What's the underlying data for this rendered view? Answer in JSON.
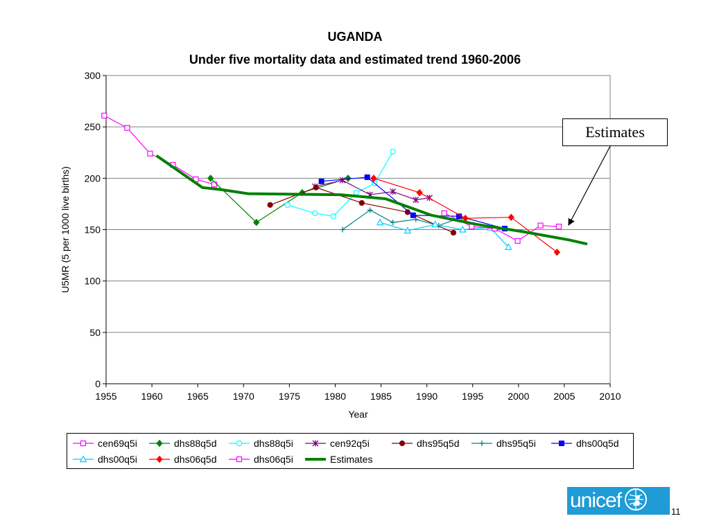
{
  "title": "UGANDA",
  "subtitle": "Under five mortality data and estimated trend 1960-2006",
  "callout": {
    "label": "Estimates"
  },
  "logo": {
    "text": "unicef"
  },
  "page_number": "11",
  "chart_data": {
    "type": "line",
    "title": "UGANDA",
    "subtitle": "Under five mortality data and estimated trend 1960-2006",
    "xlabel": "Year",
    "ylabel": "U5MR (5 per 1000 live births)",
    "xlim": [
      1955,
      2010
    ],
    "ylim": [
      0,
      300
    ],
    "xticks": [
      1955,
      1960,
      1965,
      1970,
      1975,
      1980,
      1985,
      1990,
      1995,
      2000,
      2005,
      2010
    ],
    "yticks": [
      0,
      50,
      100,
      150,
      200,
      250,
      300
    ],
    "grid": "horizontal",
    "legend": "bottom",
    "series": [
      {
        "name": "cen69q5i",
        "color": "#ff00ff",
        "marker": "square-open",
        "x": [
          1954.8,
          1957.3,
          1959.8,
          1962.3,
          1964.8,
          1966.8
        ],
        "y": [
          261,
          249,
          224,
          213,
          199,
          194
        ]
      },
      {
        "name": "dhs88q5d",
        "color": "#008000",
        "marker": "diamond",
        "x": [
          1966.4,
          1971.4,
          1976.4,
          1981.4
        ],
        "y": [
          200,
          157,
          186,
          200
        ]
      },
      {
        "name": "dhs88q5i",
        "color": "#00ffff",
        "marker": "circle-open",
        "x": [
          1974.8,
          1977.8,
          1979.8,
          1982.3,
          1984.3,
          1986.3
        ],
        "y": [
          174,
          166,
          163,
          186,
          195,
          226
        ]
      },
      {
        "name": "cen92q5i",
        "color": "#800080",
        "marker": "star",
        "x": [
          1977.8,
          1980.8,
          1983.8,
          1986.3,
          1988.8,
          1990.3
        ],
        "y": [
          192,
          198,
          184,
          187,
          179,
          181
        ]
      },
      {
        "name": "dhs95q5d",
        "color": "#800000",
        "marker": "circle",
        "x": [
          1972.9,
          1977.9,
          1982.9,
          1987.9,
          1992.9
        ],
        "y": [
          174,
          191,
          176,
          167,
          147
        ]
      },
      {
        "name": "dhs95q5i",
        "color": "#008080",
        "marker": "plus",
        "x": [
          1980.8,
          1983.8,
          1986.3,
          1988.8,
          1991.3,
          1993.8
        ],
        "y": [
          150,
          169,
          157,
          160,
          154,
          162
        ]
      },
      {
        "name": "dhs00q5d",
        "color": "#0000ff",
        "marker": "square",
        "x": [
          1978.5,
          1983.5,
          1988.5,
          1993.5,
          1998.5
        ],
        "y": [
          197,
          201,
          164,
          163,
          151
        ]
      },
      {
        "name": "dhs00q5i",
        "color": "#00ccff",
        "marker": "triangle-open",
        "x": [
          1984.9,
          1987.9,
          1990.9,
          1993.9,
          1996.9,
          1998.9
        ],
        "y": [
          157,
          149,
          155,
          150,
          152,
          133
        ]
      },
      {
        "name": "dhs06q5d",
        "color": "#ff0000",
        "marker": "diamond",
        "x": [
          1984.2,
          1989.2,
          1994.2,
          1999.2,
          2004.2
        ],
        "y": [
          200,
          186,
          161,
          162,
          128
        ]
      },
      {
        "name": "dhs06q5i",
        "color": "#ff00ff",
        "marker": "square-open",
        "x": [
          1991.9,
          1994.9,
          1997.4,
          1999.9,
          2002.4,
          2004.4
        ],
        "y": [
          166,
          153,
          151,
          139,
          154,
          153
        ]
      },
      {
        "name": "Estimates",
        "color": "#008000",
        "marker": "none",
        "bold": true,
        "x": [
          1960.5,
          1965.5,
          1967.5,
          1970.5,
          1975.5,
          1980.5,
          1985.5,
          1990.5,
          1995.5,
          2000.5,
          2005.5,
          2007.5
        ],
        "y": [
          222,
          191,
          189,
          185,
          184.5,
          184,
          180,
          164,
          155,
          148,
          140,
          136
        ]
      }
    ]
  }
}
